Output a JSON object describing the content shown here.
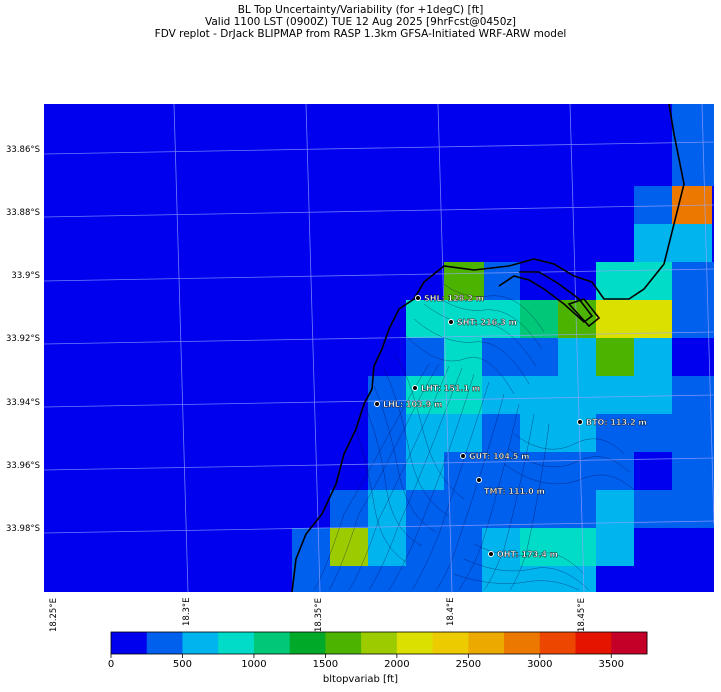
{
  "title": {
    "line1": "BL Top Uncertainty/Variability (for +1degC) [ft]",
    "line2": "Valid 1100 LST (0900Z) TUE 12 Aug 2025 [9hrFcst@0450z]",
    "line3": "FDV replot - DrJack BLIPMAP from RASP 1.3km GFSA-Initiated WRF-ARW model"
  },
  "lat_labels": [
    "33.86°S",
    "33.88°S",
    "33.9°S",
    "33.92°S",
    "33.94°S",
    "33.96°S",
    "33.98°S"
  ],
  "lon_labels": [
    "18.25°E",
    "18.3°E",
    "18.35°E",
    "18.4°E",
    "18.45°E"
  ],
  "stations": [
    {
      "label": "SHL: 128.2 m"
    },
    {
      "label": "SHT: 216.3 m"
    },
    {
      "label": "LHT: 151.1 m"
    },
    {
      "label": "LHL: 103.9 m"
    },
    {
      "label": "BTO: 113.2 m"
    },
    {
      "label": "GUT: 104.5 m"
    },
    {
      "label": "TMT: 111.0 m"
    },
    {
      "label": "OHT: 173.4 m"
    }
  ],
  "colorbar": {
    "label": "bltopvariab [ft]",
    "ticks": [
      "0",
      "500",
      "1000",
      "1500",
      "2000",
      "2500",
      "3000",
      "3500"
    ],
    "colors": [
      "#0000ee",
      "#0060ee",
      "#00b4ee",
      "#00dcc8",
      "#00c878",
      "#00aa28",
      "#4cb400",
      "#9ccc00",
      "#dce000",
      "#eccc00",
      "#ecaa00",
      "#ec7800",
      "#ec4600",
      "#e41400",
      "#c40028"
    ]
  }
}
